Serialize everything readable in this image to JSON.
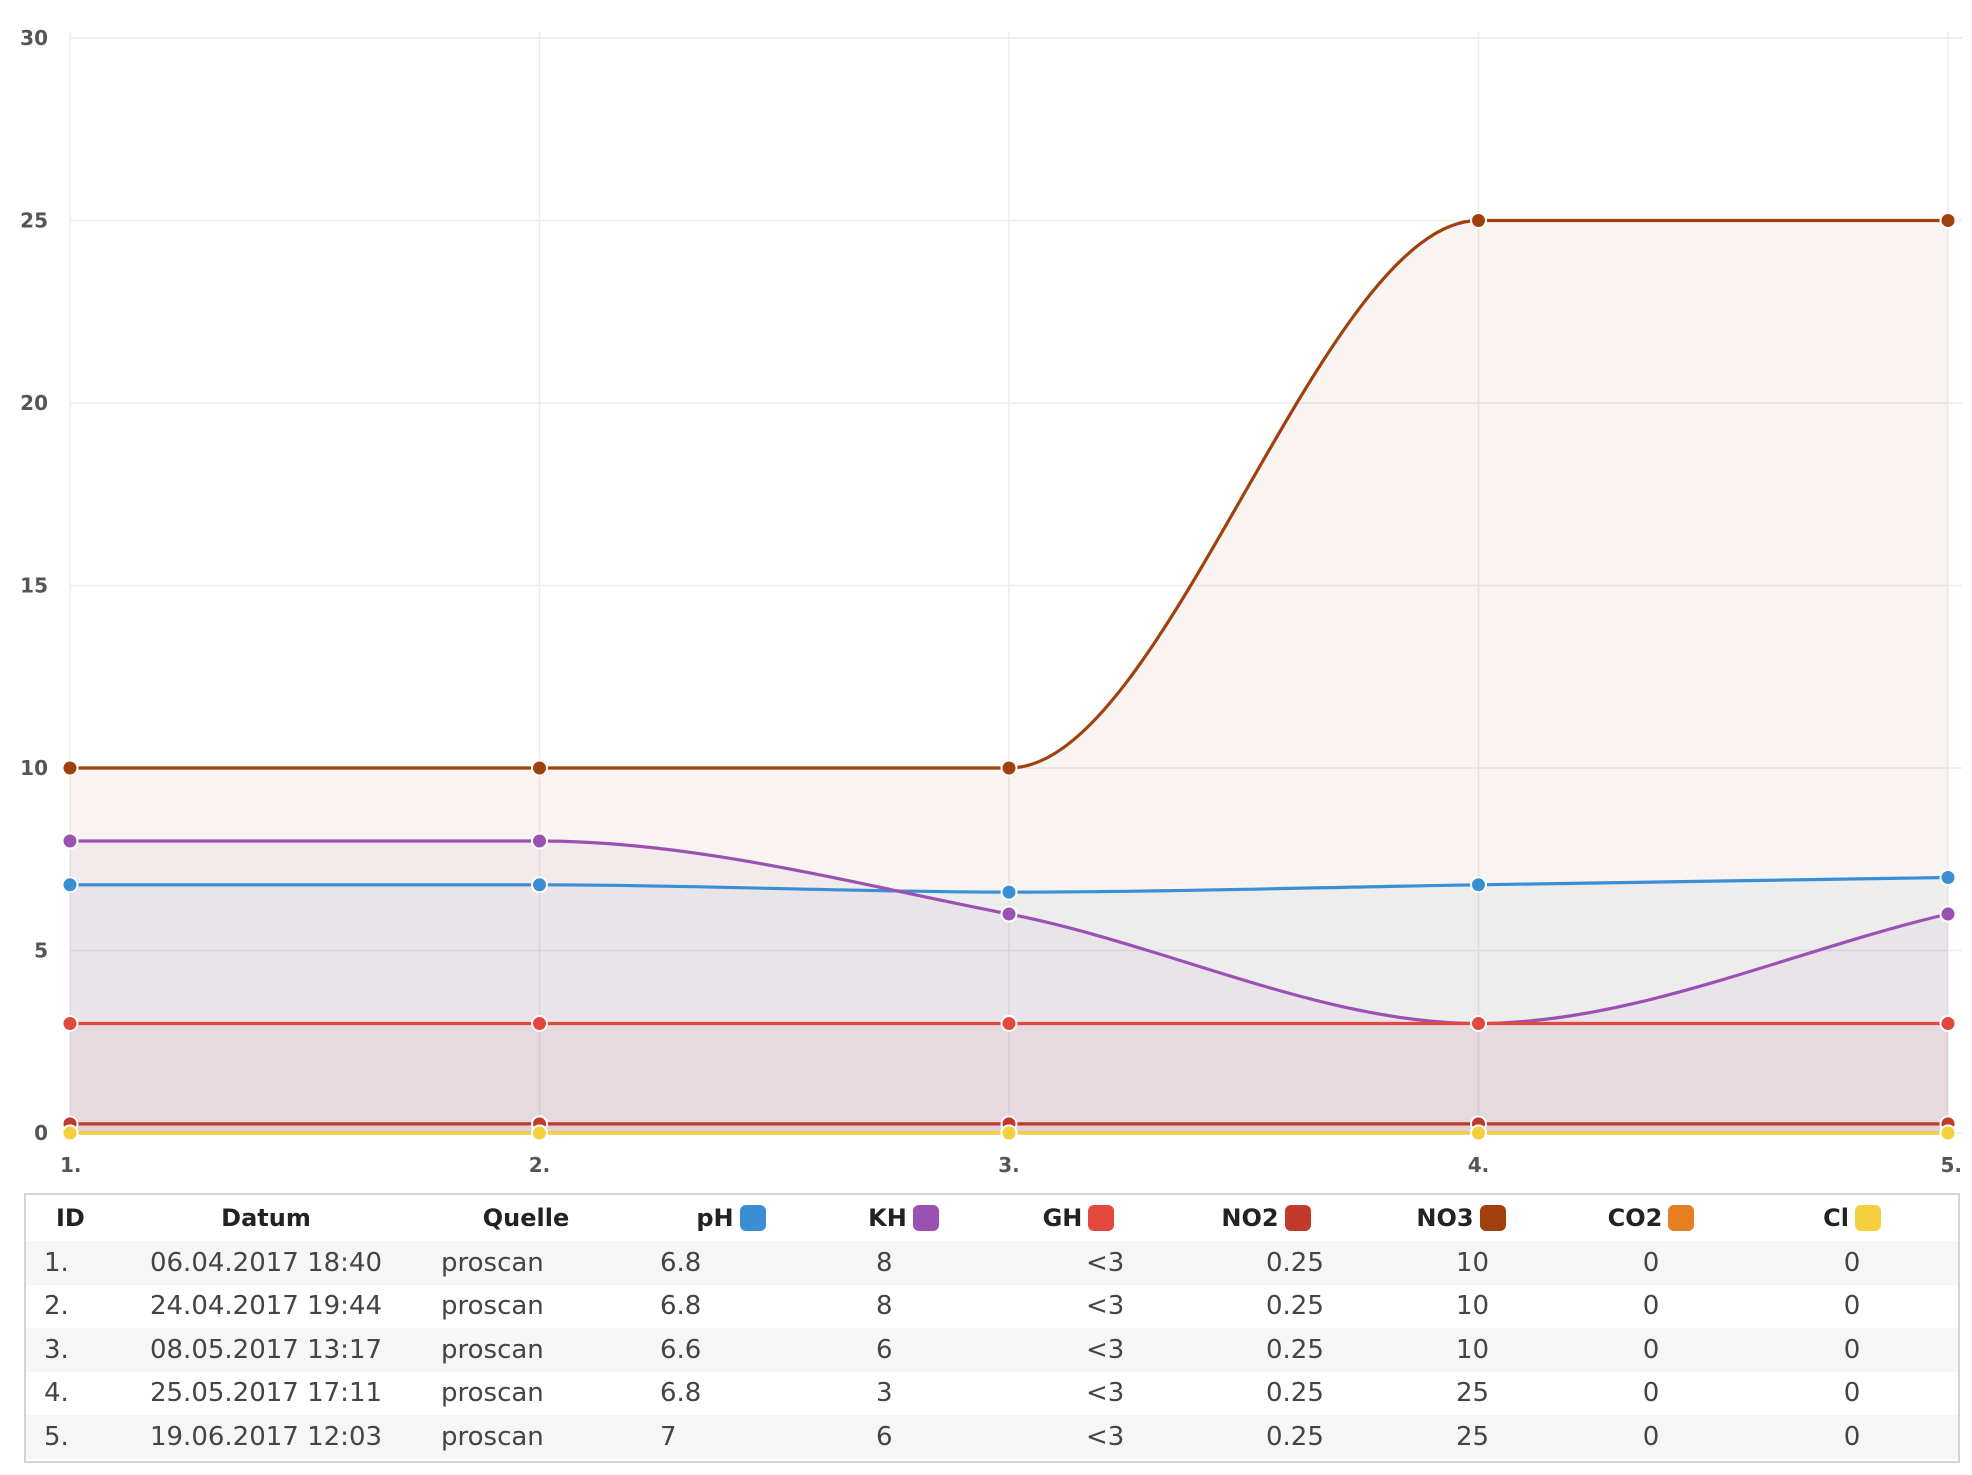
{
  "chart_data": {
    "type": "area",
    "categories": [
      "1.",
      "2.",
      "3.",
      "4.",
      "5."
    ],
    "y_ticks": [
      "0",
      "5",
      "10",
      "15",
      "20",
      "25",
      "30"
    ],
    "ylim": [
      0,
      30
    ],
    "grid": true,
    "series": [
      {
        "name": "pH",
        "color": "#3a8fd4",
        "values": [
          6.8,
          6.8,
          6.6,
          6.8,
          7
        ]
      },
      {
        "name": "KH",
        "color": "#9b51b2",
        "values": [
          8,
          8,
          6,
          3,
          6
        ]
      },
      {
        "name": "GH",
        "color": "#e2483c",
        "values": [
          3,
          3,
          3,
          3,
          3
        ]
      },
      {
        "name": "NO2",
        "color": "#c0392b",
        "values": [
          0.25,
          0.25,
          0.25,
          0.25,
          0.25
        ]
      },
      {
        "name": "NO3",
        "color": "#a0410d",
        "values": [
          10,
          10,
          10,
          25,
          25
        ]
      },
      {
        "name": "CO2",
        "color": "#e67e22",
        "values": [
          0,
          0,
          0,
          0,
          0
        ]
      },
      {
        "name": "Cl",
        "color": "#f4d03f",
        "values": [
          0,
          0,
          0,
          0,
          0
        ]
      }
    ]
  },
  "table": {
    "headers": {
      "id": "ID",
      "datum": "Datum",
      "quelle": "Quelle",
      "ph": "pH",
      "kh": "KH",
      "gh": "GH",
      "no2": "NO2",
      "no3": "NO3",
      "co2": "CO2",
      "cl": "Cl"
    },
    "rows": [
      {
        "id": "1.",
        "datum": "06.04.2017 18:40",
        "quelle": "proscan",
        "ph": "6.8",
        "kh": "8",
        "gh": "<3",
        "no2": "0.25",
        "no3": "10",
        "co2": "0",
        "cl": "0"
      },
      {
        "id": "2.",
        "datum": "24.04.2017 19:44",
        "quelle": "proscan",
        "ph": "6.8",
        "kh": "8",
        "gh": "<3",
        "no2": "0.25",
        "no3": "10",
        "co2": "0",
        "cl": "0"
      },
      {
        "id": "3.",
        "datum": "08.05.2017 13:17",
        "quelle": "proscan",
        "ph": "6.6",
        "kh": "6",
        "gh": "<3",
        "no2": "0.25",
        "no3": "10",
        "co2": "0",
        "cl": "0"
      },
      {
        "id": "4.",
        "datum": "25.05.2017 17:11",
        "quelle": "proscan",
        "ph": "6.8",
        "kh": "3",
        "gh": "<3",
        "no2": "0.25",
        "no3": "25",
        "co2": "0",
        "cl": "0"
      },
      {
        "id": "5.",
        "datum": "19.06.2017 12:03",
        "quelle": "proscan",
        "ph": "7",
        "kh": "6",
        "gh": "<3",
        "no2": "0.25",
        "no3": "25",
        "co2": "0",
        "cl": "0"
      }
    ]
  }
}
